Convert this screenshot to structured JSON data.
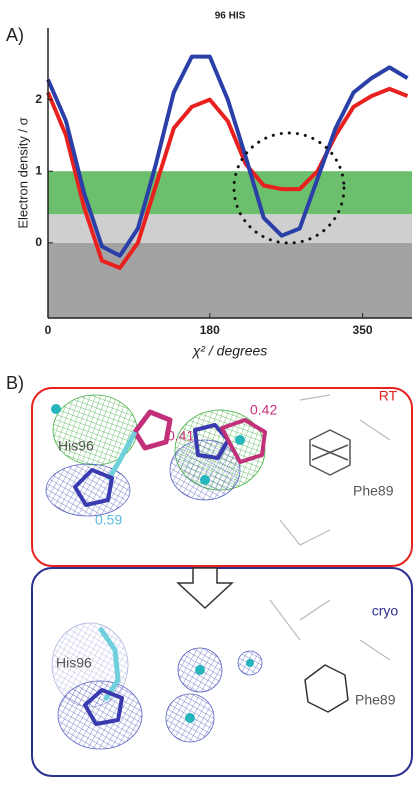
{
  "chart_data": {
    "type": "line",
    "panel_label": "A)",
    "title": "96 HIS",
    "xlabel": "χ² / degrees",
    "ylabel": "Electron density / σ",
    "x": [
      0,
      20,
      40,
      60,
      80,
      100,
      120,
      140,
      160,
      180,
      200,
      220,
      240,
      260,
      280,
      300,
      320,
      340,
      360,
      380,
      400
    ],
    "series": [
      {
        "color": "#e8201e",
        "values": [
          2.1,
          1.5,
          0.5,
          -0.25,
          -0.35,
          0.0,
          0.8,
          1.6,
          1.9,
          2.0,
          1.7,
          1.1,
          0.8,
          0.75,
          0.75,
          1.0,
          1.5,
          1.9,
          2.05,
          2.15,
          2.05
        ]
      },
      {
        "color": "#2b3fa8",
        "values": [
          2.28,
          1.7,
          0.7,
          -0.05,
          -0.18,
          0.2,
          1.1,
          2.1,
          2.6,
          2.6,
          2.0,
          1.2,
          0.35,
          0.1,
          0.2,
          0.9,
          1.6,
          2.1,
          2.3,
          2.45,
          2.3
        ]
      }
    ],
    "bands": [
      {
        "from": -1.05,
        "to": 0,
        "color": "#a3a3a3"
      },
      {
        "from": 0,
        "to": 0.4,
        "color": "#cfcfcf"
      },
      {
        "from": 0.4,
        "to": 1,
        "color": "#6cbf6c"
      }
    ],
    "xlim": [
      0,
      405
    ],
    "ylim": [
      -1.05,
      3.0
    ],
    "xticks": [
      0,
      180,
      350
    ],
    "yticks": [
      0,
      1,
      2
    ]
  },
  "panel_b": {
    "label": "B)",
    "top": {
      "title": "RT",
      "residue_a": "His96",
      "residue_b": "Phe89",
      "occupancy_a": 0.41,
      "occupancy_b": 0.42,
      "occupancy_c": 0.59
    },
    "bottom": {
      "title": "cryo",
      "residue_a": "His96",
      "residue_b": "Phe89"
    }
  }
}
